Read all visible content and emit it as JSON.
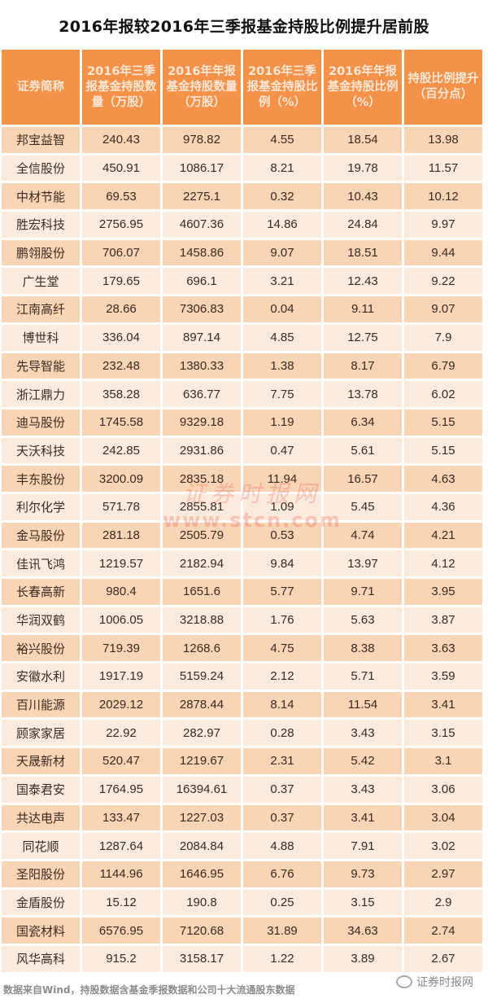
{
  "title": "2016年报较2016年三季报基金持股比例提升居前股",
  "header_color": "#f4924a",
  "row_colors": [
    "#f9d4b5",
    "#fcebdc"
  ],
  "columns": [
    "证券简称",
    "2016年三季报基金持股数量（万股）",
    "2016年年报基金持股数量（万股）",
    "2016年三季报基金持股比例（%）",
    "2016年年报基金持股比例（%）",
    "持股比例提升（百分点）"
  ],
  "rows": [
    [
      "邦宝益智",
      "240.43",
      "978.82",
      "4.55",
      "18.54",
      "13.98"
    ],
    [
      "全信股份",
      "450.91",
      "1086.17",
      "8.21",
      "19.78",
      "11.57"
    ],
    [
      "中材节能",
      "69.53",
      "2275.1",
      "0.32",
      "10.43",
      "10.12"
    ],
    [
      "胜宏科技",
      "2756.95",
      "4607.36",
      "14.86",
      "24.84",
      "9.97"
    ],
    [
      "鹏翎股份",
      "706.07",
      "1458.86",
      "9.07",
      "18.51",
      "9.44"
    ],
    [
      "广生堂",
      "179.65",
      "696.1",
      "3.21",
      "12.43",
      "9.22"
    ],
    [
      "江南高纤",
      "28.66",
      "7306.83",
      "0.04",
      "9.11",
      "9.07"
    ],
    [
      "博世科",
      "336.04",
      "897.14",
      "4.85",
      "12.75",
      "7.9"
    ],
    [
      "先导智能",
      "232.48",
      "1380.33",
      "1.38",
      "8.17",
      "6.79"
    ],
    [
      "浙江鼎力",
      "358.28",
      "636.77",
      "7.75",
      "13.78",
      "6.02"
    ],
    [
      "迪马股份",
      "1745.58",
      "9329.18",
      "1.19",
      "6.34",
      "5.15"
    ],
    [
      "天沃科技",
      "242.85",
      "2931.86",
      "0.47",
      "5.61",
      "5.15"
    ],
    [
      "丰东股份",
      "3200.09",
      "2835.18",
      "11.94",
      "16.57",
      "4.63"
    ],
    [
      "利尔化学",
      "571.78",
      "2855.81",
      "1.09",
      "5.45",
      "4.36"
    ],
    [
      "金马股份",
      "281.18",
      "2505.79",
      "0.53",
      "4.74",
      "4.21"
    ],
    [
      "佳讯飞鸿",
      "1219.57",
      "2182.94",
      "9.84",
      "13.97",
      "4.12"
    ],
    [
      "长春高新",
      "980.4",
      "1651.6",
      "5.77",
      "9.71",
      "3.95"
    ],
    [
      "华润双鹤",
      "1006.05",
      "3218.88",
      "1.76",
      "5.63",
      "3.87"
    ],
    [
      "裕兴股份",
      "719.39",
      "1268.6",
      "4.75",
      "8.38",
      "3.63"
    ],
    [
      "安徽水利",
      "1917.19",
      "5159.24",
      "2.12",
      "5.71",
      "3.59"
    ],
    [
      "百川能源",
      "2029.12",
      "2878.44",
      "8.14",
      "11.54",
      "3.41"
    ],
    [
      "顾家家居",
      "22.92",
      "282.97",
      "0.28",
      "3.43",
      "3.15"
    ],
    [
      "天晟新材",
      "520.47",
      "1219.67",
      "2.31",
      "5.42",
      "3.1"
    ],
    [
      "国泰君安",
      "1764.95",
      "16394.61",
      "0.37",
      "3.43",
      "3.06"
    ],
    [
      "共达电声",
      "133.47",
      "1227.03",
      "0.37",
      "3.41",
      "3.04"
    ],
    [
      "同花顺",
      "1287.64",
      "2084.84",
      "4.88",
      "7.91",
      "3.02"
    ],
    [
      "圣阳股份",
      "1144.96",
      "1646.95",
      "6.76",
      "9.73",
      "2.97"
    ],
    [
      "金盾股份",
      "15.12",
      "190.8",
      "0.25",
      "3.15",
      "2.9"
    ],
    [
      "国瓷材料",
      "6576.95",
      "7120.68",
      "31.89",
      "34.63",
      "2.74"
    ],
    [
      "风华高科",
      "915.2",
      "3158.17",
      "1.22",
      "3.89",
      "2.67"
    ]
  ],
  "watermark": {
    "cn": "证券时报网",
    "url": "www.stcn.com"
  },
  "footer": "数据来自Wind，持股数据含基金季报数据和公司十大流通股东数据",
  "brand": {
    "icon": "wechat-icon",
    "label": "证券时报网"
  }
}
